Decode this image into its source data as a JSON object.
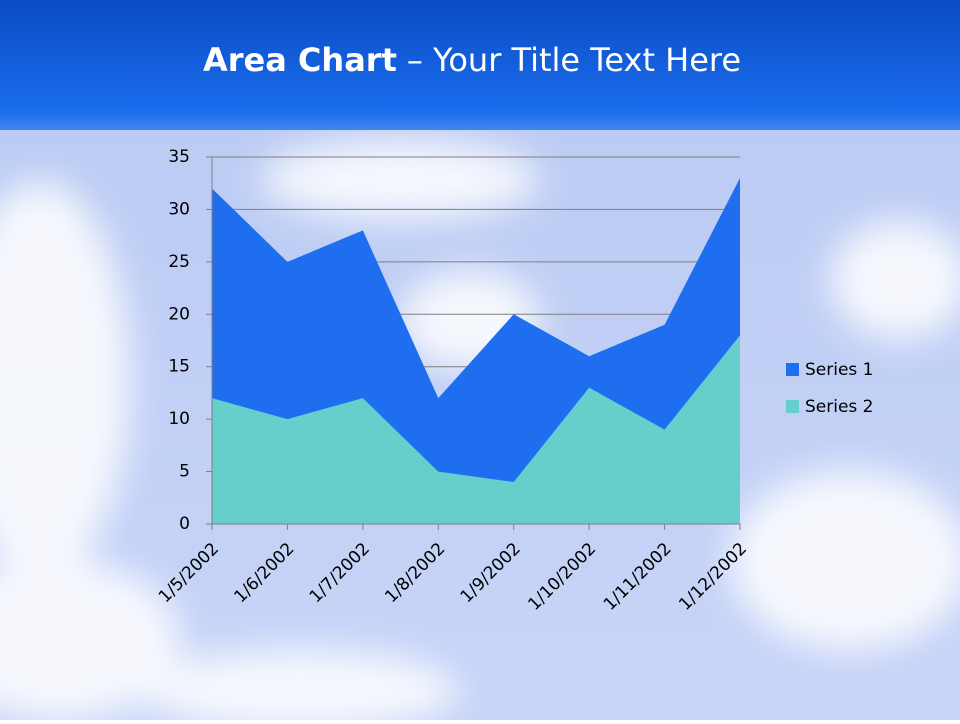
{
  "chart_data": {
    "type": "area",
    "title_parts": [
      "Area Chart",
      "– Your Title Text Here"
    ],
    "categories": [
      "1/5/2002",
      "1/6/2002",
      "1/7/2002",
      "1/8/2002",
      "1/9/2002",
      "1/10/2002",
      "1/11/2002",
      "1/12/2002"
    ],
    "series": [
      {
        "name": "Series 1",
        "color": "#1f6ef0",
        "values": [
          32,
          25,
          28,
          12,
          20,
          16,
          19,
          33
        ]
      },
      {
        "name": "Series 2",
        "color": "#66cfcc",
        "values": [
          12,
          10,
          12,
          5,
          4,
          13,
          9,
          18
        ]
      }
    ],
    "ylim": [
      0,
      35
    ],
    "yticks": [
      0,
      5,
      10,
      15,
      20,
      25,
      30,
      35
    ],
    "grid": true,
    "legend": "right"
  }
}
